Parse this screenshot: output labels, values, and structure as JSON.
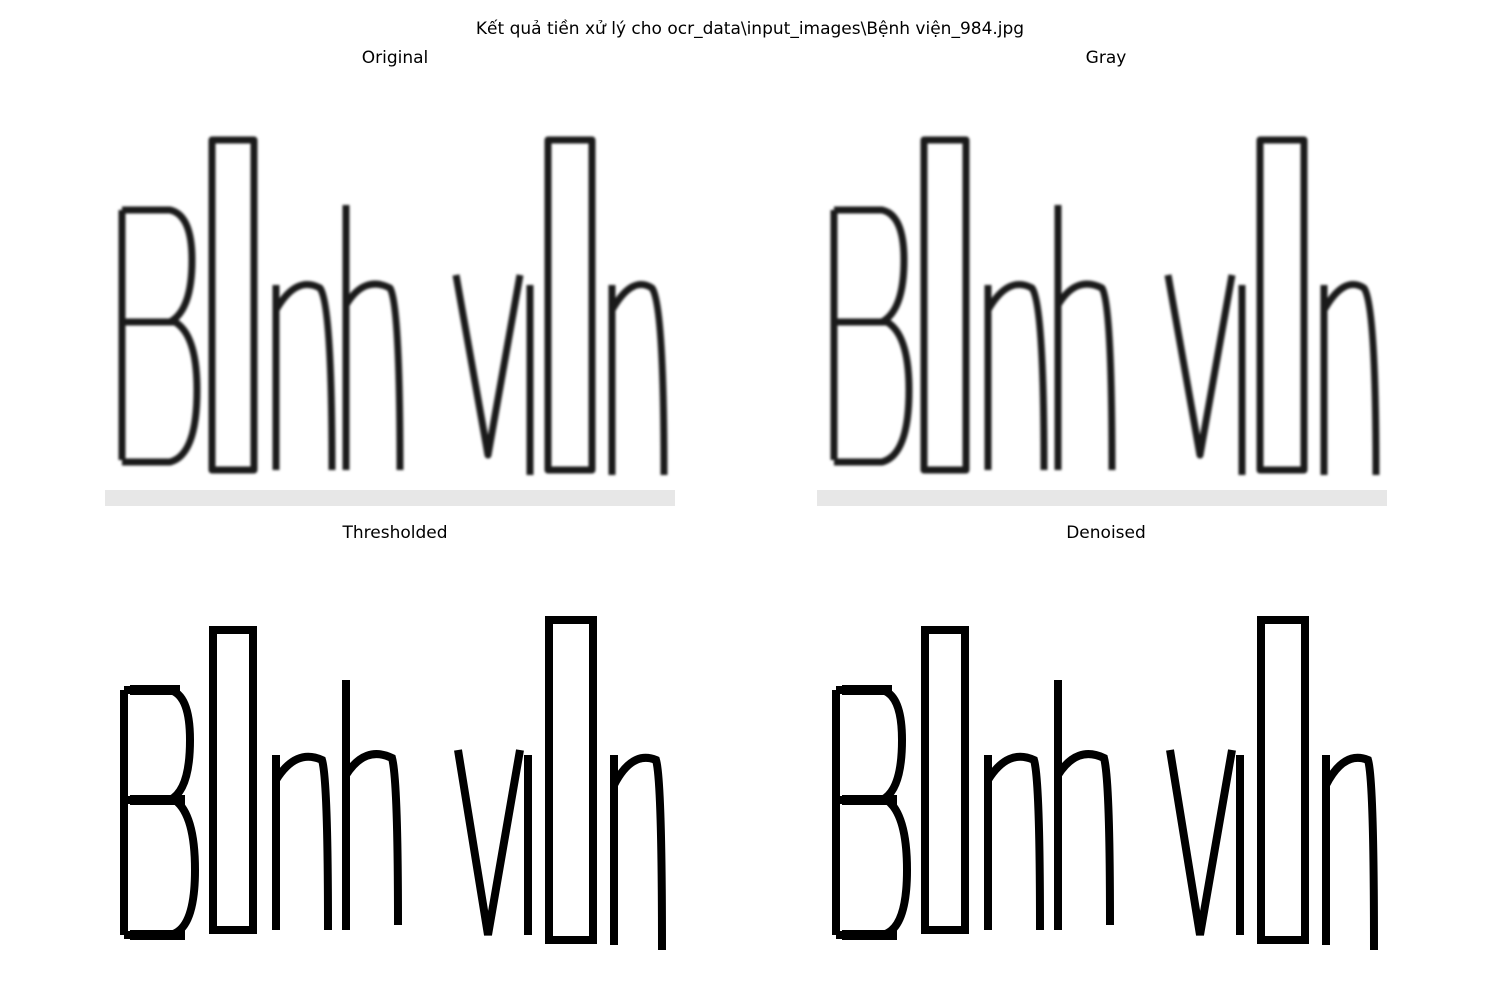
{
  "figure": {
    "title": "Kết quả tiền xử lý cho ocr_data\\input_images\\Bệnh viện_984.jpg"
  },
  "panels": [
    {
      "title": "Original",
      "style": "soft"
    },
    {
      "title": "Gray",
      "style": "soft"
    },
    {
      "title": "Thresholded",
      "style": "binary"
    },
    {
      "title": "Denoised",
      "style": "binary"
    }
  ]
}
